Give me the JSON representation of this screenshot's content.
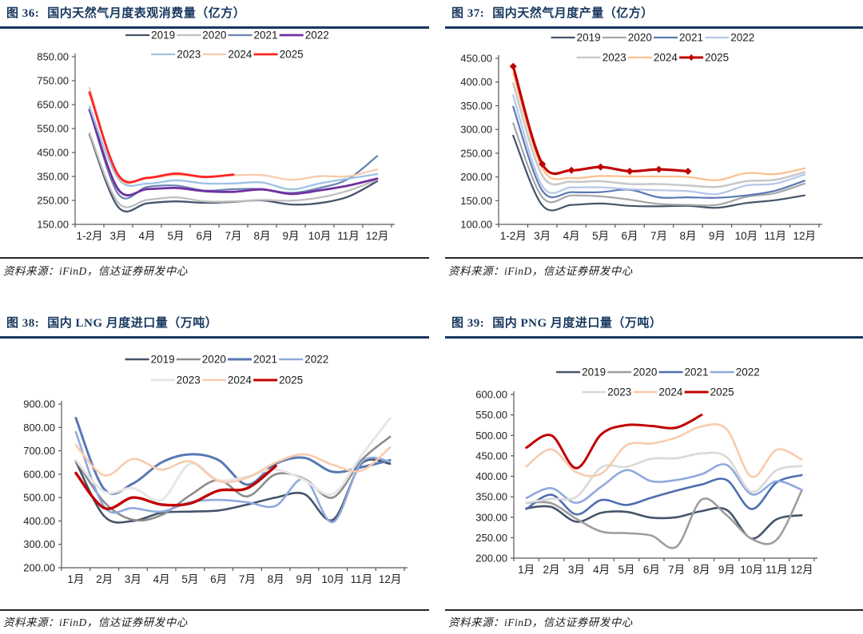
{
  "source_note": "资料来源：iFinD，信达证券研发中心",
  "chart_data": [
    {
      "id": "figure-36",
      "type": "line",
      "title": "图 36:  国内天然气月度表观消费量（亿方）",
      "title_label": "图 36:",
      "title_text": "国内天然气月度表观消费量（亿方）",
      "source": "资料来源：iFinD，信达证券研发中心",
      "xlabel": "",
      "ylabel": "",
      "ylim": [
        150,
        850
      ],
      "yticks": [
        "850.00",
        "750.00",
        "650.00",
        "550.00",
        "450.00",
        "350.00",
        "250.00",
        "150.00"
      ],
      "categories": [
        "1-2月",
        "3月",
        "4月",
        "5月",
        "6月",
        "7月",
        "8月",
        "9月",
        "10月",
        "11月",
        "12月"
      ],
      "grid": false,
      "smooth": true,
      "legend_position": "top",
      "legend_rows": [
        [
          "2019",
          "2020",
          "2021",
          "2022"
        ],
        [
          "2023",
          "2024",
          "2025"
        ]
      ],
      "series": [
        {
          "name": "2019",
          "color": "#44546A",
          "width": 2.3,
          "values": [
            525,
            222,
            238,
            246,
            240,
            244,
            250,
            233,
            239,
            266,
            330
          ]
        },
        {
          "name": "2020",
          "color": "#BFBFBF",
          "width": 2.3,
          "values": [
            531,
            240,
            252,
            263,
            246,
            246,
            252,
            249,
            262,
            291,
            336
          ]
        },
        {
          "name": "2021",
          "color": "#6C84B4",
          "width": 2.3,
          "values": [
            630,
            277,
            306,
            312,
            291,
            297,
            297,
            281,
            302,
            340,
            435
          ]
        },
        {
          "name": "2022",
          "color": "#7030A0",
          "width": 2.8,
          "values": [
            628,
            296,
            297,
            302,
            289,
            286,
            296,
            277,
            292,
            312,
            341
          ]
        },
        {
          "name": "2023",
          "color": "#9DC3E6",
          "width": 2.3,
          "values": [
            641,
            341,
            320,
            334,
            321,
            321,
            325,
            296,
            321,
            341,
            360
          ]
        },
        {
          "name": "2024",
          "color": "#F8CBAD",
          "width": 2.3,
          "values": [
            721,
            351,
            345,
            356,
            350,
            355,
            356,
            336,
            351,
            351,
            380
          ]
        },
        {
          "name": "2025",
          "color": "#FF2323",
          "width": 2.8,
          "values": [
            701,
            356,
            344,
            362,
            348,
            358
          ]
        }
      ]
    },
    {
      "id": "figure-37",
      "type": "line",
      "title": "图 37:  国内天然气月度产量（亿方）",
      "title_label": "图 37:",
      "title_text": "国内天然气月度产量（亿方）",
      "source": "资料来源：iFinD，信达证券研发中心",
      "xlabel": "",
      "ylabel": "",
      "ylim": [
        100,
        450
      ],
      "yticks": [
        "450.00",
        "400.00",
        "350.00",
        "300.00",
        "250.00",
        "200.00",
        "150.00",
        "100.00"
      ],
      "categories": [
        "1-2月",
        "3月",
        "4月",
        "5月",
        "6月",
        "7月",
        "8月",
        "9月",
        "10月",
        "11月",
        "12月"
      ],
      "grid": false,
      "smooth": true,
      "legend_position": "top",
      "legend_rows": [
        [
          "2019",
          "2020",
          "2021",
          "2022"
        ],
        [
          "2023",
          "2024",
          "2025"
        ]
      ],
      "series": [
        {
          "name": "2019",
          "color": "#44546A",
          "width": 2.2,
          "values": [
            287,
            140,
            141,
            144,
            139,
            138,
            139,
            135,
            145,
            151,
            161
          ]
        },
        {
          "name": "2020",
          "color": "#A6A6A6",
          "width": 2.2,
          "values": [
            313,
            157,
            161,
            159,
            152,
            143,
            141,
            141,
            158,
            166,
            186
          ]
        },
        {
          "name": "2021",
          "color": "#5B79B4",
          "width": 2.2,
          "values": [
            348,
            171,
            168,
            168,
            173,
            157,
            157,
            156,
            161,
            171,
            192
          ]
        },
        {
          "name": "2022",
          "color": "#B4C7E7",
          "width": 2.2,
          "values": [
            372,
            181,
            178,
            178,
            174,
            172,
            170,
            164,
            182,
            186,
            205
          ]
        },
        {
          "name": "2023",
          "color": "#C9C9C9",
          "width": 2.6,
          "values": [
            397,
            203,
            190,
            191,
            185,
            185,
            182,
            179,
            191,
            194,
            210
          ]
        },
        {
          "name": "2024",
          "color": "#FABF8F",
          "width": 2.2,
          "values": [
            418,
            218,
            198,
            202,
            201,
            201,
            200,
            193,
            208,
            206,
            218
          ]
        },
        {
          "name": "2025",
          "color": "#C00000",
          "width": 3.2,
          "marker": "diamond",
          "values": [
            433,
            227,
            214,
            221,
            212,
            216,
            212
          ]
        }
      ]
    },
    {
      "id": "figure-38",
      "type": "line",
      "title": "图 38:  国内 LNG 月度进口量（万吨）",
      "title_label": "图 38:",
      "title_text": "国内 LNG 月度进口量（万吨）",
      "source": "资料来源：iFinD，信达证券研发中心",
      "xlabel": "",
      "ylabel": "",
      "ylim": [
        200,
        900
      ],
      "yticks": [
        "900.00",
        "800.00",
        "700.00",
        "600.00",
        "500.00",
        "400.00",
        "300.00",
        "200.00"
      ],
      "categories": [
        "1月",
        "2月",
        "3月",
        "4月",
        "5月",
        "6月",
        "7月",
        "8月",
        "9月",
        "10月",
        "11月",
        "12月"
      ],
      "grid": false,
      "smooth": true,
      "legend_position": "top",
      "legend_rows": [
        [
          "2019",
          "2020",
          "2021",
          "2022"
        ],
        [
          "2023",
          "2024",
          "2025"
        ]
      ],
      "series": [
        {
          "name": "2019",
          "color": "#44546A",
          "width": 2.6,
          "values": [
            655,
            420,
            400,
            435,
            440,
            445,
            470,
            500,
            515,
            405,
            645,
            645
          ]
        },
        {
          "name": "2020",
          "color": "#8C8C8C",
          "width": 2.6,
          "values": [
            660,
            480,
            405,
            425,
            510,
            575,
            505,
            600,
            580,
            500,
            660,
            760
          ]
        },
        {
          "name": "2021",
          "color": "#5878B4",
          "width": 3.0,
          "values": [
            840,
            535,
            560,
            650,
            685,
            660,
            555,
            645,
            670,
            610,
            630,
            660
          ]
        },
        {
          "name": "2022",
          "color": "#8FAADC",
          "width": 2.6,
          "values": [
            780,
            460,
            455,
            440,
            480,
            490,
            480,
            465,
            580,
            395,
            650,
            655
          ]
        },
        {
          "name": "2023",
          "color": "#E7E6E6",
          "width": 3.0,
          "values": [
            660,
            525,
            540,
            490,
            645,
            575,
            590,
            620,
            575,
            515,
            680,
            840
          ]
        },
        {
          "name": "2024",
          "color": "#F8CBAD",
          "width": 2.6,
          "values": [
            725,
            595,
            665,
            620,
            655,
            570,
            585,
            650,
            685,
            640,
            615,
            715
          ]
        },
        {
          "name": "2025",
          "color": "#C00000",
          "width": 3.4,
          "values": [
            605,
            455,
            500,
            470,
            475,
            530,
            540,
            635
          ]
        }
      ]
    },
    {
      "id": "figure-39",
      "type": "line",
      "title": "图 39:  国内 PNG 月度进口量（万吨）",
      "title_label": "图 39:",
      "title_text": "国内 PNG 月度进口量（万吨）",
      "source": "资料来源：iFinD，信达证券研发中心",
      "xlabel": "",
      "ylabel": "",
      "ylim": [
        200,
        600
      ],
      "yticks": [
        "600.00",
        "550.00",
        "500.00",
        "450.00",
        "400.00",
        "350.00",
        "300.00",
        "250.00",
        "200.00"
      ],
      "categories": [
        "1月",
        "2月",
        "3月",
        "4月",
        "5月",
        "6月",
        "7月",
        "8月",
        "9月",
        "10月",
        "11月",
        "12月"
      ],
      "grid": false,
      "smooth": true,
      "legend_position": "top",
      "legend_rows": [
        [
          "2019",
          "2020",
          "2021",
          "2022"
        ],
        [
          "2023",
          "2024",
          "2025"
        ]
      ],
      "series": [
        {
          "name": "2019",
          "color": "#44546A",
          "width": 2.6,
          "values": [
            322,
            325,
            289,
            311,
            313,
            299,
            300,
            315,
            318,
            248,
            295,
            305
          ]
        },
        {
          "name": "2020",
          "color": "#9E9E9E",
          "width": 2.6,
          "values": [
            335,
            334,
            296,
            265,
            261,
            255,
            228,
            343,
            305,
            247,
            245,
            365
          ]
        },
        {
          "name": "2021",
          "color": "#4F6DB0",
          "width": 2.6,
          "values": [
            320,
            355,
            307,
            342,
            330,
            348,
            365,
            380,
            391,
            320,
            385,
            403
          ]
        },
        {
          "name": "2022",
          "color": "#8FAADC",
          "width": 2.6,
          "values": [
            347,
            371,
            335,
            375,
            415,
            388,
            391,
            405,
            428,
            356,
            388,
            367
          ]
        },
        {
          "name": "2023",
          "color": "#D9D9D9",
          "width": 2.6,
          "values": [
            335,
            345,
            350,
            422,
            423,
            443,
            444,
            456,
            447,
            362,
            415,
            425
          ]
        },
        {
          "name": "2024",
          "color": "#F8CBAD",
          "width": 2.6,
          "values": [
            424,
            466,
            410,
            407,
            476,
            480,
            495,
            522,
            515,
            399,
            465,
            441
          ]
        },
        {
          "name": "2025",
          "color": "#C00000",
          "width": 3.0,
          "values": [
            470,
            500,
            420,
            503,
            525,
            523,
            519,
            550
          ]
        }
      ]
    }
  ]
}
